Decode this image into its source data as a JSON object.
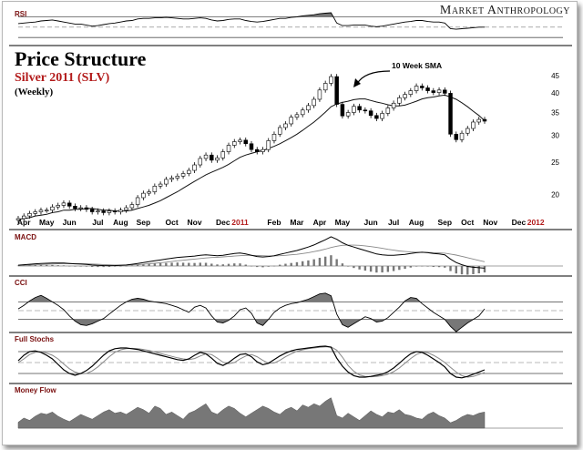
{
  "brand": "Market Anthropology",
  "header": {
    "title": "Price Structure",
    "subtitle": "Silver 2011 (SLV)",
    "period": "(Weekly)"
  },
  "annotation": {
    "label": "10 Week SMA"
  },
  "panels": {
    "rsi": "RSI",
    "macd": "MACD",
    "cci": "CCI",
    "stochs": "Full Stochs",
    "money_flow": "Money Flow"
  },
  "colors": {
    "accent": "#b31b1b",
    "candle_up": "#ffffff",
    "candle_down": "#000000",
    "fill": "#777777",
    "line": "#000000"
  },
  "chart_data": [
    {
      "id": "price",
      "type": "candlestick",
      "title": "Price Structure",
      "scale": "log",
      "ylim": [
        19,
        47
      ],
      "yticks": [
        20,
        25,
        30,
        35,
        40,
        45
      ],
      "xlabels": [
        {
          "label": "Apr",
          "week": 1
        },
        {
          "label": "May",
          "week": 5
        },
        {
          "label": "Jun",
          "week": 9
        },
        {
          "label": "Jul",
          "week": 14
        },
        {
          "label": "Aug",
          "week": 18
        },
        {
          "label": "Sep",
          "week": 22
        },
        {
          "label": "Oct",
          "week": 27
        },
        {
          "label": "Nov",
          "week": 31
        },
        {
          "label": "Dec",
          "week": 36
        },
        {
          "label": "2011",
          "week": 39,
          "highlight": true
        },
        {
          "label": "Feb",
          "week": 45
        },
        {
          "label": "Mar",
          "week": 49
        },
        {
          "label": "Apr",
          "week": 53
        },
        {
          "label": "May",
          "week": 57
        },
        {
          "label": "Jun",
          "week": 62
        },
        {
          "label": "Jul",
          "week": 66
        },
        {
          "label": "Aug",
          "week": 70
        },
        {
          "label": "Sep",
          "week": 75
        },
        {
          "label": "Oct",
          "week": 79
        },
        {
          "label": "Nov",
          "week": 83
        },
        {
          "label": "Dec",
          "week": 88
        },
        {
          "label": "2012",
          "week": 91,
          "highlight": true
        }
      ],
      "close": [
        17.0,
        17.3,
        17.6,
        17.8,
        18.0,
        18.0,
        18.4,
        18.6,
        18.9,
        18.5,
        18.2,
        18.3,
        18.1,
        17.8,
        17.9,
        17.7,
        17.9,
        17.8,
        18.0,
        18.3,
        18.7,
        19.6,
        20.2,
        20.4,
        21.2,
        21.5,
        22.2,
        22.4,
        22.7,
        23.1,
        23.6,
        24.5,
        25.6,
        26.2,
        25.3,
        25.7,
        26.8,
        28.0,
        28.7,
        29.0,
        28.3,
        27.2,
        26.8,
        27.2,
        28.9,
        30.2,
        31.6,
        32.4,
        33.9,
        34.5,
        35.6,
        36.7,
        38.3,
        40.8,
        42.7,
        44.7,
        37.0,
        34.2,
        35.0,
        36.5,
        35.6,
        35.4,
        34.3,
        33.6,
        34.8,
        36.1,
        37.3,
        38.7,
        39.6,
        40.6,
        41.9,
        41.4,
        40.6,
        40.1,
        40.8,
        39.9,
        30.2,
        29.1,
        30.4,
        31.4,
        32.8,
        33.4,
        33.0
      ],
      "sma10": [
        16.9,
        17.0,
        17.1,
        17.3,
        17.4,
        17.5,
        17.7,
        17.8,
        18.0,
        18.0,
        18.1,
        18.1,
        18.2,
        18.2,
        18.1,
        18.0,
        18.0,
        17.9,
        17.9,
        17.9,
        18.0,
        18.2,
        18.4,
        18.6,
        18.9,
        19.2,
        19.6,
        20.0,
        20.4,
        20.9,
        21.4,
        21.9,
        22.4,
        22.9,
        23.3,
        23.7,
        24.1,
        24.6,
        25.2,
        25.8,
        26.2,
        26.5,
        26.8,
        27.0,
        27.4,
        27.8,
        28.3,
        28.9,
        29.5,
        30.2,
        31.0,
        31.9,
        32.8,
        33.9,
        35.1,
        36.4,
        37.1,
        37.5,
        37.8,
        38.2,
        38.4,
        38.4,
        38.0,
        37.6,
        37.3,
        36.9,
        36.6,
        36.6,
        36.8,
        37.3,
        37.8,
        38.4,
        38.7,
        38.9,
        39.2,
        39.4,
        38.9,
        38.3,
        37.4,
        36.4,
        35.3,
        34.3,
        33.1
      ]
    },
    {
      "id": "rsi",
      "type": "area",
      "title": "RSI",
      "ylim": [
        0,
        100
      ],
      "values": [
        57,
        58,
        59,
        60,
        62,
        63,
        64,
        62,
        60,
        58,
        56,
        56,
        54,
        52,
        53,
        55,
        57,
        58,
        60,
        62,
        63,
        66,
        67,
        67,
        68,
        68,
        69,
        68,
        67,
        66,
        66,
        67,
        68,
        67,
        64,
        62,
        63,
        65,
        66,
        66,
        63,
        61,
        60,
        61,
        63,
        65,
        67,
        67,
        69,
        70,
        72,
        73,
        74,
        76,
        77,
        78,
        58,
        53,
        53,
        54,
        54,
        54,
        52,
        51,
        52,
        54,
        56,
        58,
        60,
        61,
        63,
        63,
        61,
        60,
        60,
        58,
        47,
        46,
        47,
        48,
        49,
        50,
        50
      ]
    },
    {
      "id": "macd",
      "type": "line+histogram",
      "title": "MACD",
      "ylim": [
        -3,
        4
      ],
      "macd": [
        0.1,
        0.15,
        0.2,
        0.25,
        0.3,
        0.32,
        0.35,
        0.35,
        0.35,
        0.3,
        0.25,
        0.22,
        0.18,
        0.12,
        0.08,
        0.05,
        0.04,
        0.05,
        0.08,
        0.12,
        0.2,
        0.3,
        0.4,
        0.5,
        0.6,
        0.7,
        0.8,
        0.9,
        1.0,
        1.05,
        1.1,
        1.15,
        1.25,
        1.3,
        1.25,
        1.2,
        1.25,
        1.35,
        1.45,
        1.5,
        1.4,
        1.25,
        1.1,
        1.05,
        1.1,
        1.2,
        1.35,
        1.5,
        1.65,
        1.8,
        2.0,
        2.2,
        2.45,
        2.75,
        3.05,
        3.4,
        3.1,
        2.7,
        2.4,
        2.2,
        2.0,
        1.8,
        1.6,
        1.4,
        1.3,
        1.25,
        1.25,
        1.3,
        1.35,
        1.45,
        1.55,
        1.6,
        1.55,
        1.45,
        1.4,
        1.3,
        0.8,
        0.4,
        0.15,
        -0.05,
        -0.15,
        -0.2,
        -0.25
      ],
      "signal": [
        0.05,
        0.08,
        0.11,
        0.14,
        0.17,
        0.2,
        0.23,
        0.26,
        0.28,
        0.29,
        0.28,
        0.27,
        0.25,
        0.23,
        0.2,
        0.17,
        0.14,
        0.12,
        0.11,
        0.11,
        0.13,
        0.16,
        0.2,
        0.26,
        0.32,
        0.38,
        0.45,
        0.52,
        0.6,
        0.67,
        0.74,
        0.8,
        0.87,
        0.93,
        0.98,
        1.02,
        1.06,
        1.1,
        1.15,
        1.2,
        1.24,
        1.24,
        1.22,
        1.2,
        1.18,
        1.18,
        1.2,
        1.24,
        1.3,
        1.36,
        1.45,
        1.55,
        1.67,
        1.8,
        1.96,
        2.15,
        2.3,
        2.4,
        2.43,
        2.43,
        2.4,
        2.34,
        2.26,
        2.16,
        2.05,
        1.94,
        1.84,
        1.75,
        1.68,
        1.63,
        1.6,
        1.59,
        1.58,
        1.56,
        1.53,
        1.49,
        1.39,
        1.27,
        1.12,
        0.96,
        0.8,
        0.65,
        0.5
      ]
    },
    {
      "id": "cci",
      "type": "line+area",
      "title": "CCI",
      "ylim": [
        -250,
        250
      ],
      "values": [
        20,
        60,
        110,
        150,
        175,
        140,
        100,
        60,
        10,
        -60,
        -120,
        -160,
        -170,
        -150,
        -120,
        -90,
        -40,
        10,
        60,
        100,
        130,
        140,
        130,
        110,
        100,
        90,
        80,
        60,
        40,
        10,
        -20,
        40,
        60,
        30,
        -60,
        -130,
        -140,
        -110,
        -60,
        10,
        30,
        -30,
        -140,
        -170,
        -100,
        -20,
        30,
        60,
        80,
        90,
        110,
        130,
        160,
        190,
        200,
        170,
        -40,
        -160,
        -190,
        -150,
        -110,
        -70,
        -90,
        -130,
        -120,
        -80,
        -20,
        40,
        110,
        150,
        140,
        80,
        30,
        -20,
        -60,
        -100,
        -180,
        -240,
        -190,
        -140,
        -100,
        -60,
        20
      ]
    },
    {
      "id": "stochs",
      "type": "line",
      "title": "Full Stochs",
      "ylim": [
        0,
        100
      ],
      "k": [
        55,
        70,
        80,
        82,
        78,
        70,
        60,
        45,
        30,
        20,
        15,
        20,
        28,
        40,
        55,
        70,
        82,
        88,
        90,
        90,
        88,
        86,
        82,
        78,
        74,
        70,
        66,
        62,
        58,
        56,
        60,
        70,
        78,
        74,
        62,
        48,
        42,
        50,
        62,
        72,
        74,
        66,
        52,
        44,
        48,
        58,
        68,
        76,
        82,
        86,
        88,
        90,
        92,
        94,
        95,
        92,
        62,
        40,
        24,
        14,
        10,
        10,
        12,
        15,
        18,
        25,
        35,
        48,
        62,
        74,
        80,
        78,
        70,
        60,
        50,
        38,
        20,
        10,
        8,
        12,
        18,
        24,
        30
      ],
      "d": [
        50,
        60,
        72,
        78,
        80,
        76,
        70,
        60,
        46,
        33,
        24,
        19,
        20,
        27,
        38,
        52,
        66,
        78,
        85,
        88,
        89,
        88,
        86,
        83,
        79,
        75,
        71,
        67,
        63,
        60,
        58,
        61,
        68,
        74,
        72,
        62,
        51,
        47,
        50,
        60,
        68,
        72,
        66,
        56,
        48,
        49,
        56,
        66,
        74,
        81,
        85,
        88,
        90,
        92,
        93,
        93,
        84,
        65,
        42,
        26,
        16,
        12,
        11,
        12,
        14,
        18,
        25,
        35,
        48,
        61,
        72,
        78,
        77,
        70,
        61,
        50,
        37,
        24,
        14,
        10,
        12,
        17,
        23
      ]
    },
    {
      "id": "money_flow",
      "type": "area",
      "title": "Money Flow",
      "ylim": [
        0,
        100
      ],
      "values": [
        45,
        52,
        48,
        55,
        60,
        58,
        62,
        55,
        50,
        46,
        52,
        58,
        54,
        50,
        56,
        62,
        66,
        60,
        62,
        58,
        64,
        70,
        66,
        60,
        72,
        68,
        58,
        62,
        56,
        50,
        60,
        64,
        70,
        76,
        62,
        58,
        66,
        72,
        68,
        60,
        54,
        60,
        66,
        72,
        68,
        62,
        58,
        66,
        70,
        64,
        74,
        70,
        76,
        72,
        80,
        86,
        56,
        52,
        60,
        54,
        48,
        56,
        64,
        58,
        54,
        62,
        60,
        66,
        58,
        56,
        52,
        50,
        58,
        62,
        56,
        52,
        44,
        48,
        54,
        58,
        56,
        60,
        62
      ]
    }
  ]
}
